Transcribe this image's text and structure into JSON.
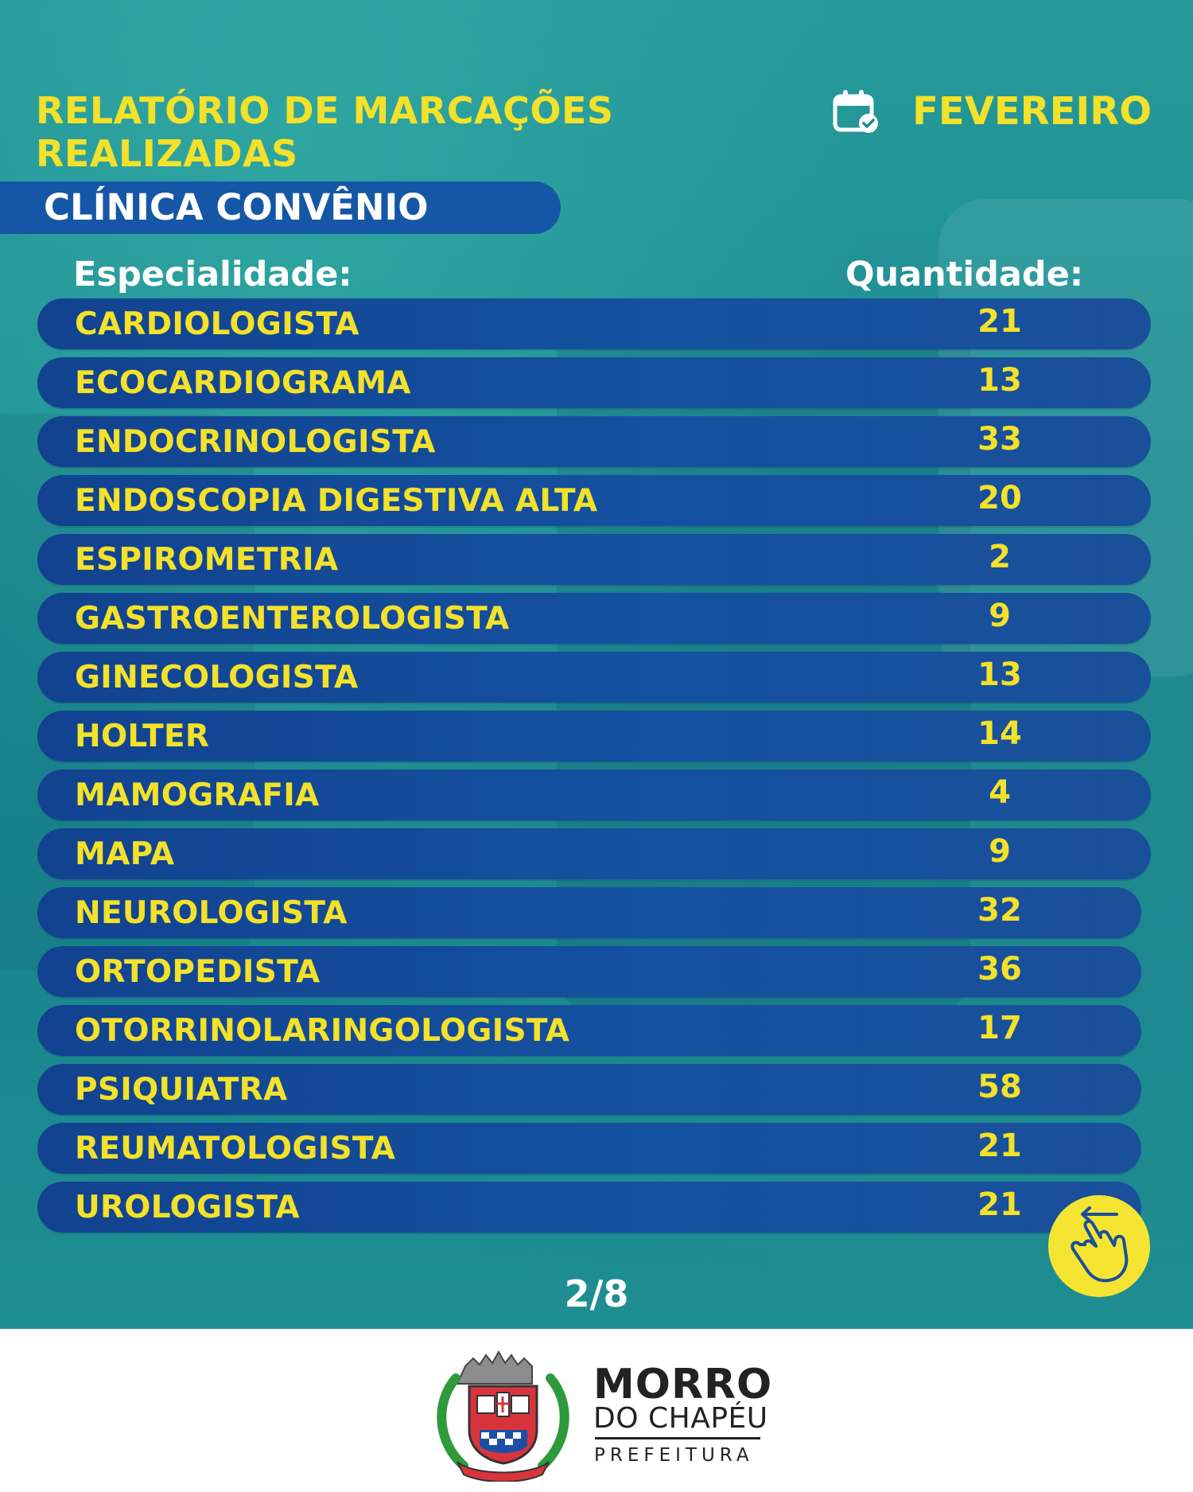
{
  "header": {
    "title_line1": "RELATÓRIO DE MARCAÇÕES",
    "title_line2": "REALIZADAS",
    "month": "FEVEREIRO",
    "clinic": "CLÍNICA CONVÊNIO"
  },
  "table": {
    "col_left": "Especialidade:",
    "col_right": "Quantidade:",
    "rows": [
      {
        "name": "CARDIOLOGISTA",
        "qty": "21"
      },
      {
        "name": "ECOCARDIOGRAMA",
        "qty": "13"
      },
      {
        "name": "ENDOCRINOLOGISTA",
        "qty": "33"
      },
      {
        "name": "ENDOSCOPIA DIGESTIVA ALTA",
        "qty": "20"
      },
      {
        "name": "ESPIROMETRIA",
        "qty": "2"
      },
      {
        "name": "GASTROENTEROLOGISTA",
        "qty": "9"
      },
      {
        "name": "GINECOLOGISTA",
        "qty": "13"
      },
      {
        "name": "HOLTER",
        "qty": "14"
      },
      {
        "name": "MAMOGRAFIA",
        "qty": "4"
      },
      {
        "name": "MAPA",
        "qty": "9"
      },
      {
        "name": "NEUROLOGISTA",
        "qty": "32"
      },
      {
        "name": "ORTOPEDISTA",
        "qty": "36"
      },
      {
        "name": "OTORRINOLARINGOLOGISTA",
        "qty": "17"
      },
      {
        "name": "PSIQUIATRA",
        "qty": "58"
      },
      {
        "name": "REUMATOLOGISTA",
        "qty": "21"
      },
      {
        "name": "UROLOGISTA",
        "qty": "21"
      }
    ]
  },
  "page_indicator": "2/8",
  "footer": {
    "brand_line1": "MORRO",
    "brand_line2": "DO CHAPÉU",
    "brand_line3": "PREFEITURA",
    "crest_ribbon_text": "MORRO DO CHAPÉU"
  },
  "icons": {
    "calendar": "calendar-check-icon",
    "swipe": "swipe-hand-icon"
  },
  "colors": {
    "accent_yellow": "#f3e12a",
    "row_blue": "#1451a0",
    "background_teal": "#1d8d93"
  }
}
